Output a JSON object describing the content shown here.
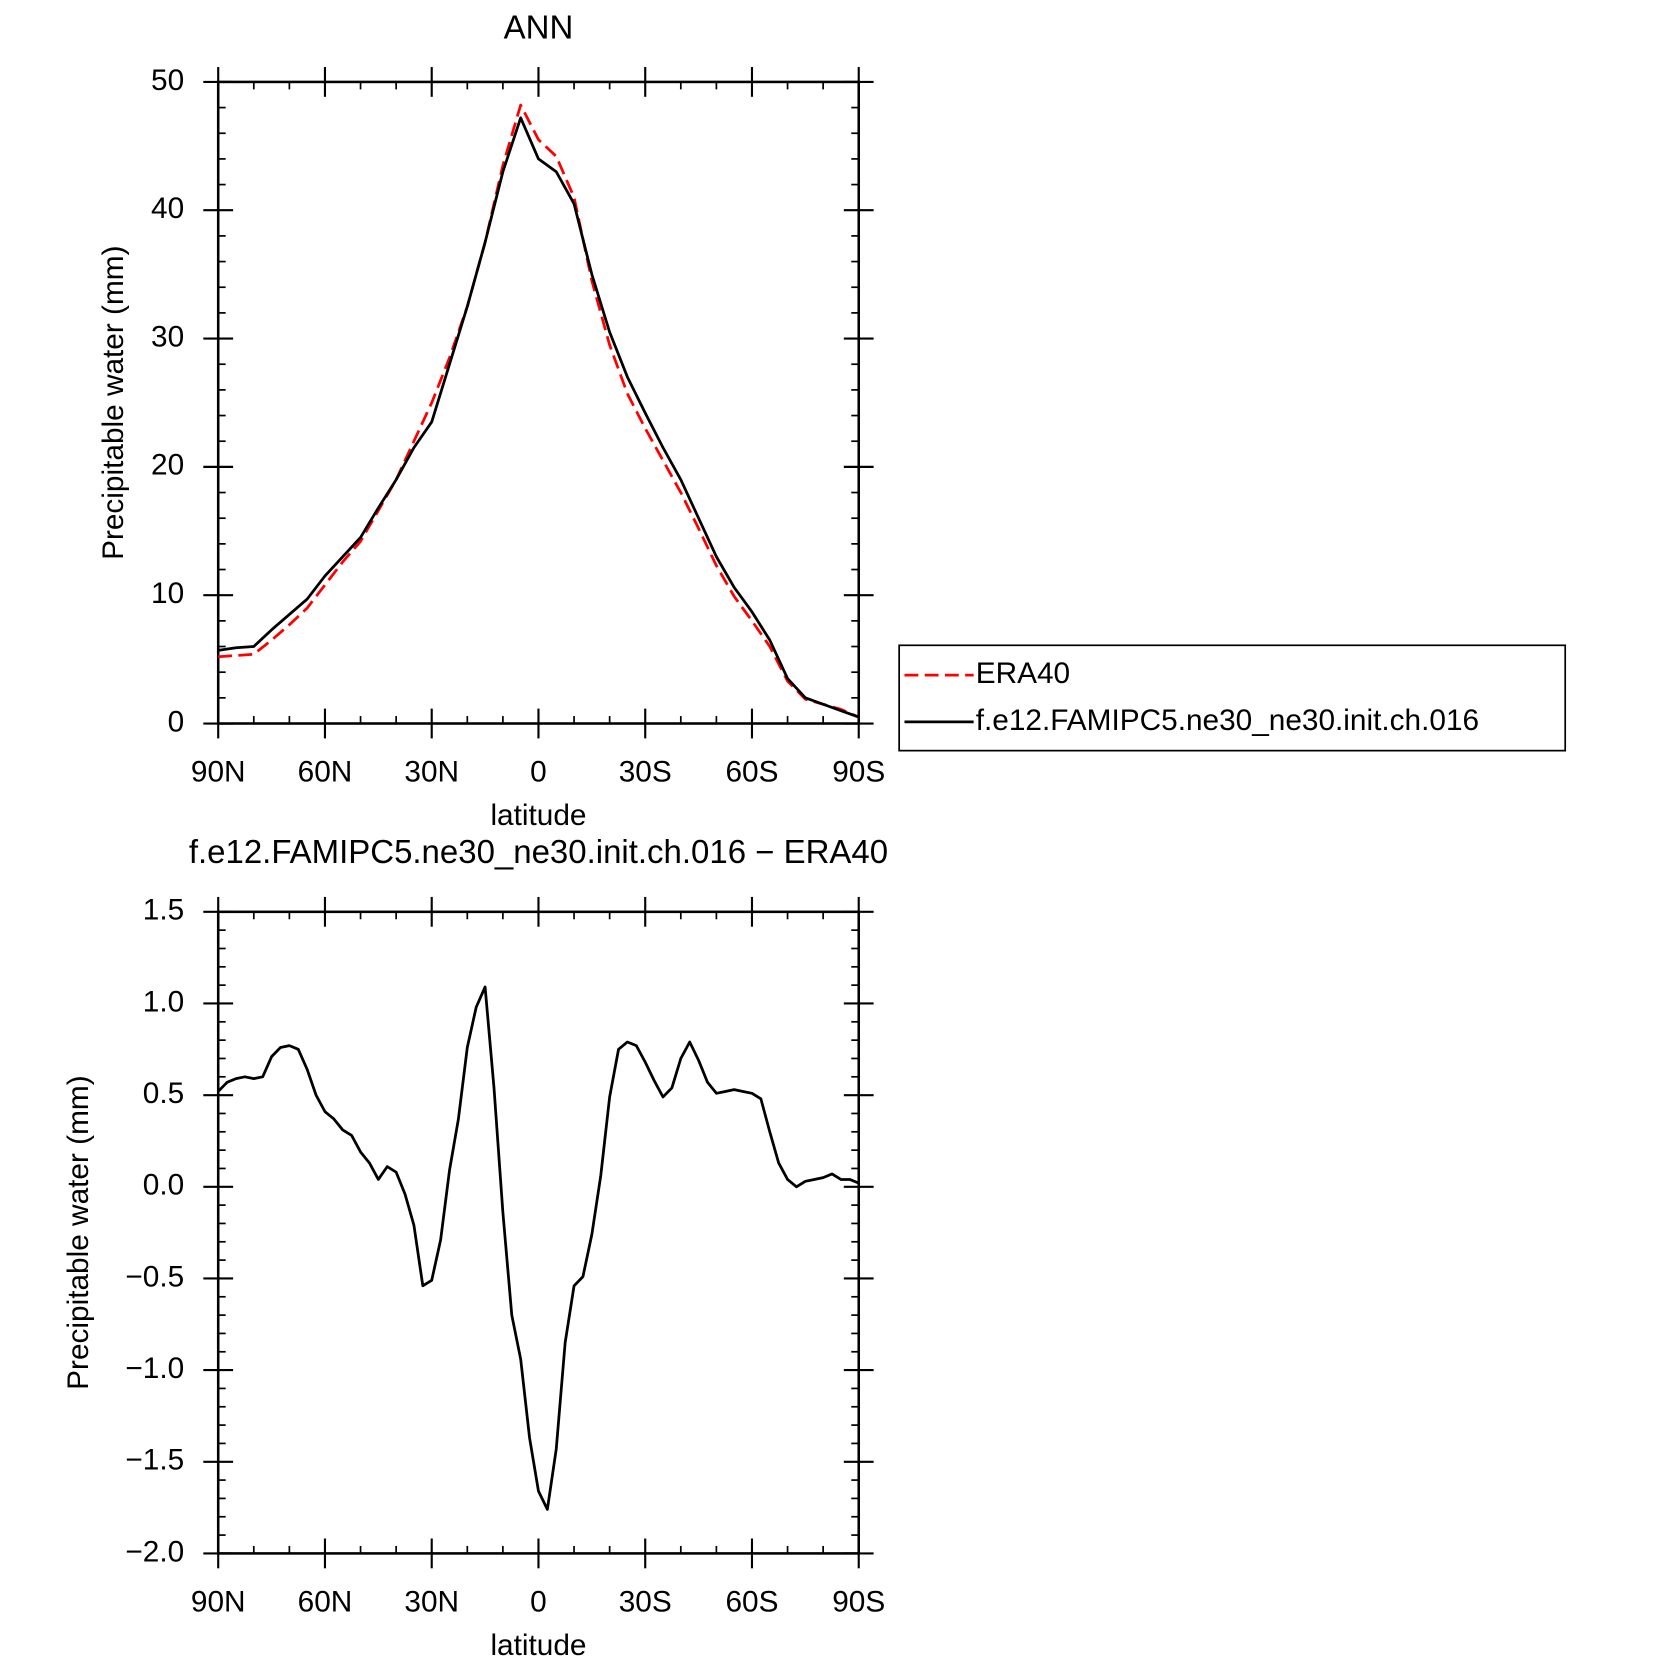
{
  "chart_data": [
    {
      "type": "line",
      "title": "ANN",
      "xlabel": "latitude",
      "ylabel": "Precipitable water (mm)",
      "x": [
        90,
        85,
        80,
        75,
        70,
        65,
        60,
        55,
        50,
        45,
        40,
        35,
        30,
        25,
        20,
        15,
        10,
        5,
        0,
        -5,
        -10,
        -15,
        -20,
        -25,
        -30,
        -35,
        -40,
        -45,
        -50,
        -55,
        -60,
        -65,
        -70,
        -75,
        -80,
        -85,
        -90
      ],
      "series": [
        {
          "name": "ERA40",
          "color": "#ff0000",
          "dashed": true,
          "values": [
            5.2,
            5.3,
            5.4,
            6.5,
            7.7,
            9.0,
            10.8,
            12.6,
            14.2,
            16.6,
            19.0,
            22,
            25,
            28.5,
            32.5,
            37.5,
            43.5,
            48.2,
            45.5,
            44.2,
            41,
            34.5,
            29.5,
            25.7,
            23,
            20.5,
            18,
            15.2,
            12.3,
            9.9,
            8.0,
            6.0,
            3.3,
            1.9,
            1.5,
            1.1,
            0.5
          ]
        },
        {
          "name": "f.e12.FAMIPC5.ne30_ne30.init.ch.016",
          "color": "#000000",
          "dashed": false,
          "values": [
            5.7,
            5.9,
            6.0,
            7.3,
            8.5,
            9.7,
            11.5,
            13.0,
            14.5,
            16.8,
            19.0,
            21.5,
            23.5,
            28,
            32.5,
            37.5,
            43,
            47.2,
            44,
            43,
            40.5,
            35,
            30.5,
            27,
            24.2,
            21.5,
            19,
            16,
            13,
            10.6,
            8.7,
            6.5,
            3.5,
            2.0,
            1.5,
            1.0,
            0.5
          ]
        }
      ],
      "xlim": [
        90,
        -90
      ],
      "xticks": [
        {
          "value": 90,
          "label": "90N"
        },
        {
          "value": 60,
          "label": "60N"
        },
        {
          "value": 30,
          "label": "30N"
        },
        0,
        {
          "value": -30,
          "label": "30S"
        },
        {
          "value": -60,
          "label": "60S"
        },
        {
          "value": -90,
          "label": "90S"
        }
      ],
      "ylim": [
        0,
        50
      ],
      "yticks": [
        0,
        10,
        20,
        30,
        40,
        50
      ],
      "legend": "outside-right"
    },
    {
      "type": "line",
      "title": "f.e12.FAMIPC5.ne30_ne30.init.ch.016 − ERA40",
      "xlabel": "latitude",
      "ylabel": "Precipitable water (mm)",
      "x": [
        90,
        87.5,
        85,
        82.5,
        80,
        77.5,
        75,
        72.5,
        70,
        67.5,
        65,
        62.5,
        60,
        57.5,
        55,
        52.5,
        50,
        47.5,
        45,
        42.5,
        40,
        37.5,
        35,
        32.5,
        30,
        27.5,
        25,
        22.5,
        20,
        17.5,
        15,
        12.5,
        10,
        7.5,
        5,
        2.5,
        0,
        -2.5,
        -5,
        -7.5,
        -10,
        -12.5,
        -15,
        -17.5,
        -20,
        -22.5,
        -25,
        -27.5,
        -30,
        -32.5,
        -35,
        -37.5,
        -40,
        -42.5,
        -45,
        -47.5,
        -50,
        -52.5,
        -55,
        -57.5,
        -60,
        -62.5,
        -65,
        -67.5,
        -70,
        -72.5,
        -75,
        -77.5,
        -80,
        -82.5,
        -85,
        -87.5,
        -90
      ],
      "color": "#000000",
      "values": [
        0.52,
        0.57,
        0.59,
        0.6,
        0.59,
        0.6,
        0.71,
        0.76,
        0.77,
        0.75,
        0.64,
        0.5,
        0.41,
        0.37,
        0.31,
        0.28,
        0.19,
        0.13,
        0.04,
        0.11,
        0.08,
        -0.04,
        -0.21,
        -0.54,
        -0.51,
        -0.29,
        0.09,
        0.37,
        0.76,
        0.98,
        1.09,
        0.54,
        -0.14,
        -0.7,
        -0.94,
        -1.37,
        -1.66,
        -1.76,
        -1.43,
        -0.85,
        -0.54,
        -0.49,
        -0.26,
        0.06,
        0.49,
        0.75,
        0.79,
        0.77,
        0.68,
        0.58,
        0.49,
        0.54,
        0.7,
        0.79,
        0.69,
        0.57,
        0.51,
        0.52,
        0.53,
        0.52,
        0.51,
        0.48,
        0.3,
        0.13,
        0.04,
        0,
        0.03,
        0.04,
        0.05,
        0.07,
        0.04,
        0.04,
        0.02
      ],
      "xlim": [
        90,
        -90
      ],
      "xticks": [
        {
          "value": 90,
          "label": "90N"
        },
        {
          "value": 60,
          "label": "60N"
        },
        {
          "value": 30,
          "label": "30N"
        },
        0,
        {
          "value": -30,
          "label": "30S"
        },
        {
          "value": -60,
          "label": "60S"
        },
        {
          "value": -90,
          "label": "90S"
        }
      ],
      "ylim": [
        -2.0,
        1.5
      ],
      "yticks": [
        {
          "value": -2.0,
          "label": "−2.0"
        },
        {
          "value": -1.5,
          "label": "−1.5"
        },
        {
          "value": -1.0,
          "label": "−1.0"
        },
        {
          "value": -0.5,
          "label": "−0.5"
        },
        {
          "value": 0,
          "label": "0.0"
        },
        0.5,
        {
          "value": 1.0,
          "label": "1.0"
        },
        1.5
      ]
    }
  ]
}
